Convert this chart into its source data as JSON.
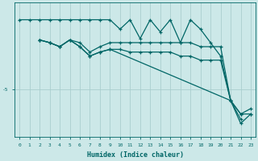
{
  "xlabel": "Humidex (Indice chaleur)",
  "background_color": "#cce8e8",
  "line_color": "#006666",
  "grid_color": "#aacece",
  "xlim": [
    -0.5,
    23.5
  ],
  "ylim": [
    -8.5,
    1.5
  ],
  "ytick_val": -5,
  "ytick_label": "-5",
  "xticks": [
    0,
    1,
    2,
    3,
    4,
    5,
    6,
    7,
    8,
    9,
    10,
    11,
    12,
    13,
    14,
    15,
    16,
    17,
    18,
    19,
    20,
    21,
    22,
    23
  ],
  "lines": [
    {
      "x": [
        0,
        1,
        2,
        3,
        4,
        5,
        6,
        7,
        8,
        9,
        10,
        11,
        12,
        13,
        14,
        15,
        16,
        17,
        18,
        19,
        20,
        21,
        22
      ],
      "y": [
        0.2,
        0.2,
        0.2,
        0.2,
        0.2,
        0.2,
        0.2,
        0.2,
        0.2,
        0.2,
        -0.5,
        0.2,
        -1.2,
        0.2,
        -0.7,
        0.2,
        -1.5,
        0.2,
        -0.5,
        -1.5,
        -2.5,
        -5.8,
        -7.2
      ]
    },
    {
      "x": [
        2,
        3,
        4,
        5,
        6,
        7,
        8,
        9,
        10,
        11,
        12,
        13,
        14,
        15,
        16,
        17,
        18,
        19,
        20,
        21,
        22,
        23
      ],
      "y": [
        -1.3,
        -1.5,
        -1.8,
        -1.3,
        -1.5,
        -2.2,
        -1.8,
        -1.5,
        -1.5,
        -1.5,
        -1.5,
        -1.5,
        -1.5,
        -1.5,
        -1.5,
        -1.5,
        -1.8,
        -1.8,
        -1.8,
        -5.8,
        -6.8,
        -6.4
      ]
    },
    {
      "x": [
        2,
        3,
        4,
        5,
        6,
        7,
        8,
        9,
        10,
        11,
        12,
        13,
        14,
        15,
        16,
        17,
        18,
        19,
        20,
        21,
        22,
        23
      ],
      "y": [
        -1.3,
        -1.5,
        -1.8,
        -1.3,
        -1.8,
        -2.5,
        -2.2,
        -2.0,
        -2.0,
        -2.2,
        -2.2,
        -2.2,
        -2.2,
        -2.2,
        -2.5,
        -2.5,
        -2.8,
        -2.8,
        -2.8,
        -5.8,
        -6.8,
        -6.8
      ]
    },
    {
      "x": [
        2,
        3,
        4,
        5,
        6,
        7,
        8,
        9,
        21,
        22,
        23
      ],
      "y": [
        -1.3,
        -1.5,
        -1.8,
        -1.3,
        -1.8,
        -2.5,
        -2.2,
        -2.0,
        -5.8,
        -7.5,
        -6.8
      ]
    }
  ]
}
